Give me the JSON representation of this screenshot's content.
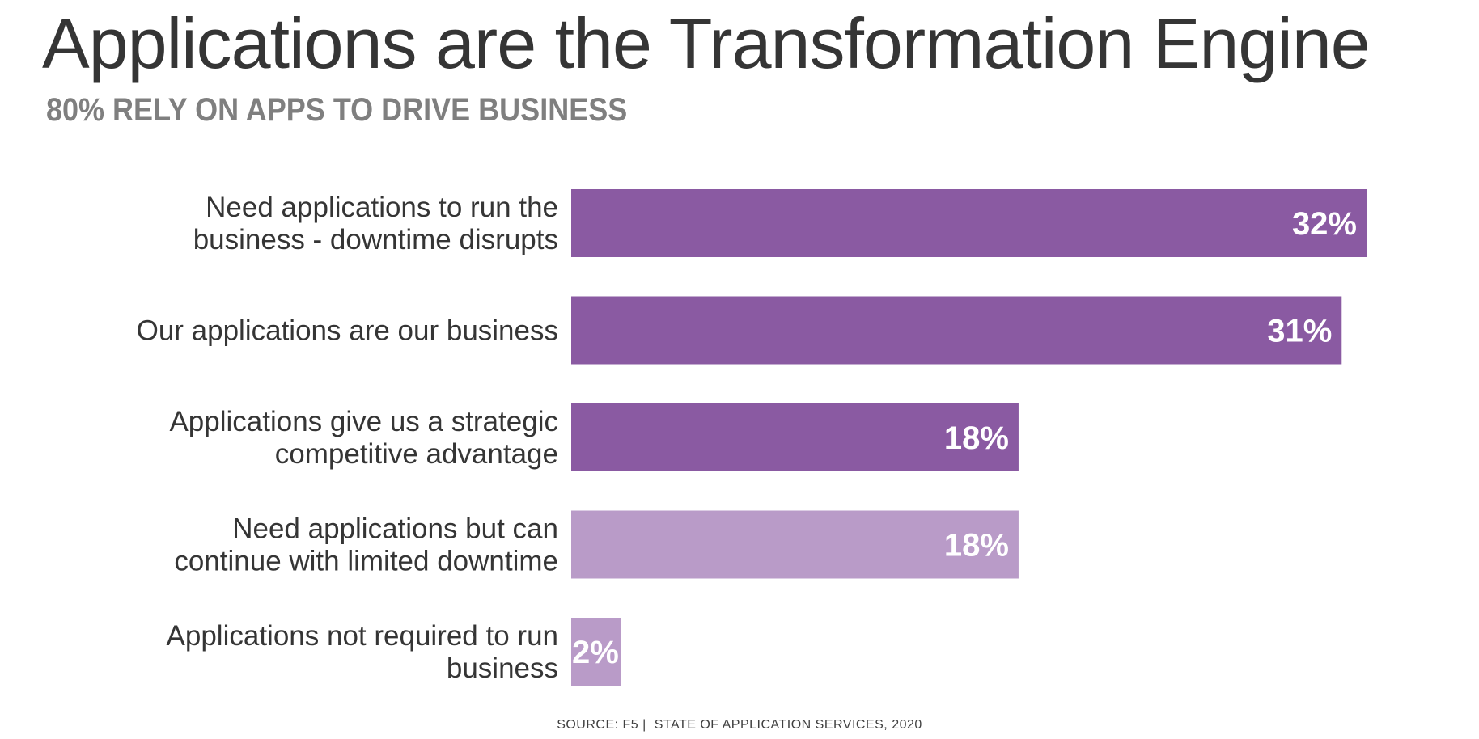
{
  "title": "Applications are the Transformation Engine",
  "subtitle": "80% RELY ON APPS TO DRIVE BUSINESS",
  "source": {
    "prefix": "SOURCE: F5 |",
    "text": "STATE OF APPLICATION SERVICES, 2020"
  },
  "colors": {
    "dark_purple": "#8a5aa2",
    "light_purple": "#b99bc8",
    "label_text": "#353535",
    "value_text": "#ffffff"
  },
  "chart_data": {
    "type": "bar",
    "orientation": "horizontal",
    "categories": [
      [
        "Need applications to run the",
        "business - downtime disrupts"
      ],
      [
        "Our applications are our business"
      ],
      [
        "Applications give us a strategic",
        "competitive advantage"
      ],
      [
        "Need applications but can",
        "continue with limited downtime"
      ],
      [
        "Applications not required to run",
        "business"
      ]
    ],
    "values": [
      32,
      31,
      18,
      18,
      2
    ],
    "value_labels": [
      "32%",
      "31%",
      "18%",
      "18%",
      "2%"
    ],
    "bar_colors": [
      "#8a5aa2",
      "#8a5aa2",
      "#8a5aa2",
      "#b99bc8",
      "#b99bc8"
    ],
    "unit": "%",
    "xlim": [
      0,
      32
    ],
    "grid": false,
    "axes_visible": false
  }
}
